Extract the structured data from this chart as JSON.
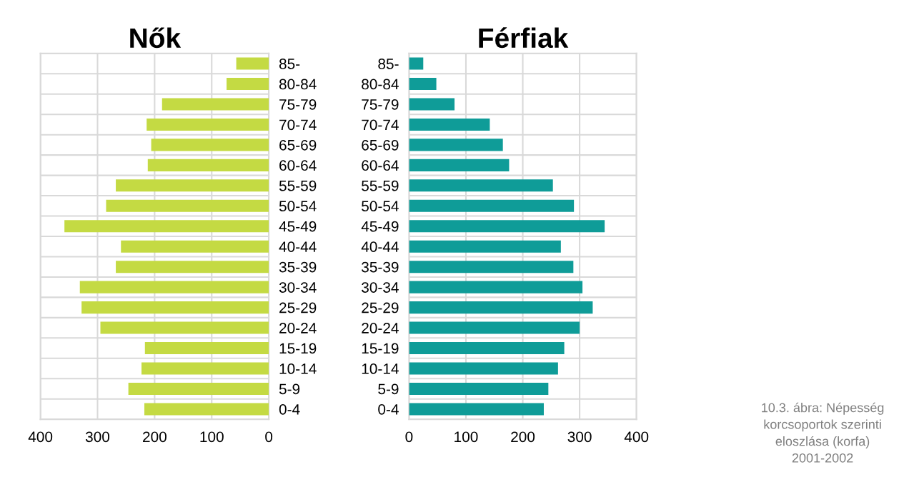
{
  "chart_data": [
    {
      "type": "bar",
      "orientation": "horizontal",
      "title": "Nők",
      "categories": [
        "85-",
        "80-84",
        "75-79",
        "70-74",
        "65-69",
        "60-64",
        "55-59",
        "50-54",
        "45-49",
        "40-44",
        "35-39",
        "30-34",
        "25-29",
        "20-24",
        "15-19",
        "10-14",
        "5-9",
        "0-4"
      ],
      "values": [
        57,
        74,
        187,
        214,
        206,
        212,
        268,
        285,
        358,
        259,
        268,
        331,
        328,
        295,
        217,
        223,
        246,
        218
      ],
      "color": "#c4da43",
      "xlim": [
        400,
        0
      ],
      "xticks": [
        400,
        300,
        200,
        100,
        0
      ],
      "grid": true
    },
    {
      "type": "bar",
      "orientation": "horizontal",
      "title": "Férfiak",
      "categories": [
        "85-",
        "80-84",
        "75-79",
        "70-74",
        "65-69",
        "60-64",
        "55-59",
        "50-54",
        "45-49",
        "40-44",
        "35-39",
        "30-34",
        "25-29",
        "20-24",
        "15-19",
        "10-14",
        "5-9",
        "0-4"
      ],
      "values": [
        25,
        48,
        80,
        142,
        165,
        176,
        253,
        290,
        344,
        267,
        289,
        305,
        323,
        300,
        273,
        262,
        245,
        237
      ],
      "color": "#0f9c98",
      "xlim": [
        0,
        400
      ],
      "xticks": [
        0,
        100,
        200,
        300,
        400
      ],
      "grid": true,
      "annotations": [
        "10.3. ábra: Népesség korcsoportok szerinti eloszlása (korfa)\n2001-2002"
      ]
    }
  ]
}
